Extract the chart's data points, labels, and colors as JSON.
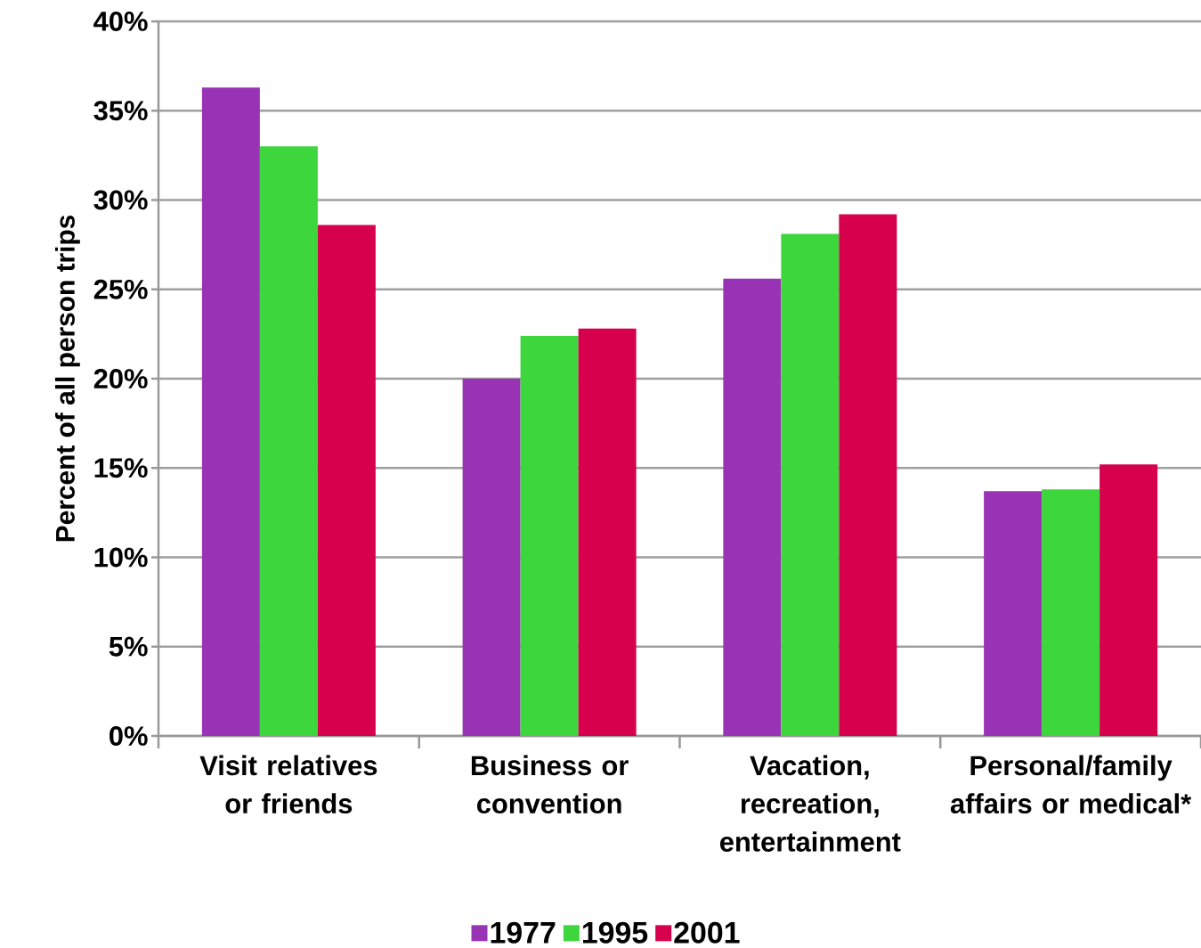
{
  "chart_data": {
    "type": "bar",
    "ylabel": "Percent of all person trips",
    "categories": [
      "Visit relatives or friends",
      "Business or convention",
      "Vacation, recreation, entertainment",
      "Personal/family affairs or medical*"
    ],
    "series": [
      {
        "name": "1977",
        "color": "#9933b5",
        "values": [
          36.3,
          20.0,
          25.6,
          13.7
        ]
      },
      {
        "name": "1995",
        "color": "#3dd63d",
        "values": [
          33.0,
          22.4,
          28.1,
          13.8
        ]
      },
      {
        "name": "2001",
        "color": "#d6004c",
        "values": [
          28.6,
          22.8,
          29.2,
          15.2
        ]
      }
    ],
    "ylim": [
      0,
      40
    ],
    "yticks": [
      {
        "value": 0,
        "label": "0%"
      },
      {
        "value": 5,
        "label": "5%"
      },
      {
        "value": 10,
        "label": "10%"
      },
      {
        "value": 15,
        "label": "15%"
      },
      {
        "value": 20,
        "label": "20%"
      },
      {
        "value": 25,
        "label": "25%"
      },
      {
        "value": 30,
        "label": "30%"
      },
      {
        "value": 35,
        "label": "35%"
      },
      {
        "value": 40,
        "label": "40%"
      }
    ],
    "grid": "y",
    "legend": "bottom"
  }
}
